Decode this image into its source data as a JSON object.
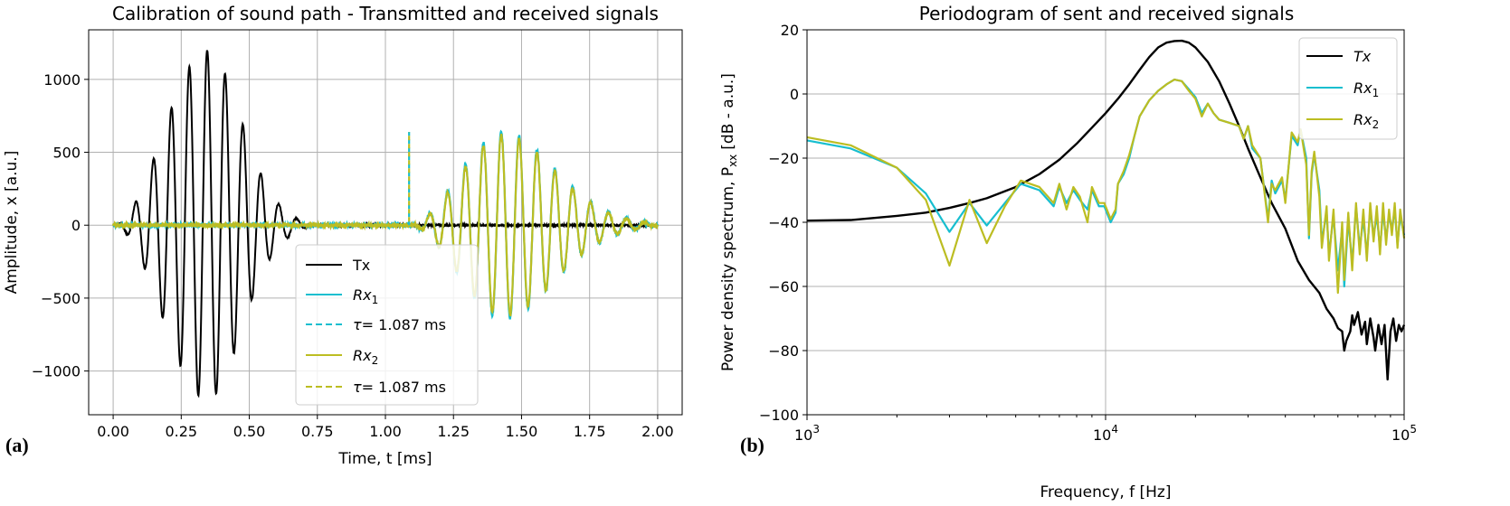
{
  "chart_data": [
    {
      "type": "line",
      "panel_label": "(a)",
      "title": "Calibration of sound path - Transmitted and received signals",
      "xlabel": "Time, t [ms]",
      "ylabel": "Amplitude, x [a.u.]",
      "xlim": [
        -0.09,
        2.09
      ],
      "ylim": [
        -1300,
        1340
      ],
      "x_ticks": [
        0.0,
        0.25,
        0.5,
        0.75,
        1.0,
        1.25,
        1.5,
        1.75,
        2.0
      ],
      "x_tick_labels": [
        "0.00",
        "0.25",
        "0.50",
        "0.75",
        "1.00",
        "1.25",
        "1.50",
        "1.75",
        "2.00"
      ],
      "y_ticks": [
        -1000,
        -500,
        0,
        500,
        1000
      ],
      "y_tick_labels": [
        "−1000",
        "−500",
        "0",
        "500",
        "1000"
      ],
      "grid": true,
      "legend_position": "lower-right",
      "series": [
        {
          "name": "Tx",
          "color": "#000000",
          "style": "solid",
          "burst": {
            "start": 0.0,
            "center": 0.35,
            "end": 0.72,
            "frequency_khz": 15.2,
            "peak_amplitude": 1200
          }
        },
        {
          "name": "Rx",
          "subscript": "1",
          "color": "#17becf",
          "style": "solid",
          "burst": {
            "start": 1.08,
            "center": 1.44,
            "end": 2.0,
            "frequency_khz": 15.2,
            "peak_amplitude": 640
          }
        },
        {
          "name": "τ",
          "value_text": "= 1.087 ms",
          "color": "#17becf",
          "style": "dashed",
          "vline_x": 1.087,
          "vline_top": 640
        },
        {
          "name": "Rx",
          "subscript": "2",
          "color": "#bcbd22",
          "style": "solid",
          "burst": {
            "start": 1.08,
            "center": 1.44,
            "end": 2.0,
            "frequency_khz": 15.2,
            "peak_amplitude": 620
          }
        },
        {
          "name": "τ",
          "value_text": "= 1.087 ms",
          "color": "#bcbd22",
          "style": "dashed",
          "vline_x": 1.087,
          "vline_top": 640
        }
      ]
    },
    {
      "type": "line",
      "panel_label": "(b)",
      "title": "Periodogram of sent and received signals",
      "xlabel": "Frequency, f [Hz]",
      "ylabel": "Power density spectrum, P",
      "ylabel_subscript": "xx",
      "ylabel_suffix": "[dB - a.u.]",
      "xscale": "log",
      "xlim": [
        1000,
        100000
      ],
      "ylim": [
        -100,
        20
      ],
      "x_ticks": [
        1000,
        10000,
        100000
      ],
      "x_tick_labels": [
        {
          "base": "10",
          "exp": "3"
        },
        {
          "base": "10",
          "exp": "4"
        },
        {
          "base": "10",
          "exp": "5"
        }
      ],
      "y_ticks": [
        -100,
        -80,
        -60,
        -40,
        -20,
        0,
        20
      ],
      "y_tick_labels": [
        "−100",
        "−80",
        "−60",
        "−40",
        "−20",
        "0",
        "20"
      ],
      "grid": true,
      "legend_position": "top-right",
      "series": [
        {
          "name": "Tx",
          "color": "#000000",
          "style": "solid",
          "points": [
            [
              1000,
              -39.5
            ],
            [
              1400,
              -39.3
            ],
            [
              2000,
              -38
            ],
            [
              2500,
              -37
            ],
            [
              3000,
              -35.5
            ],
            [
              3500,
              -34
            ],
            [
              4000,
              -32.5
            ],
            [
              5000,
              -29
            ],
            [
              6000,
              -25
            ],
            [
              7000,
              -20.5
            ],
            [
              8000,
              -15.5
            ],
            [
              9000,
              -10.5
            ],
            [
              10000,
              -6
            ],
            [
              11000,
              -1.5
            ],
            [
              12000,
              3
            ],
            [
              13000,
              7.5
            ],
            [
              14000,
              11.5
            ],
            [
              15000,
              14.5
            ],
            [
              16000,
              16
            ],
            [
              17000,
              16.5
            ],
            [
              18000,
              16.6
            ],
            [
              19000,
              16
            ],
            [
              20000,
              14.5
            ],
            [
              22000,
              10
            ],
            [
              24000,
              4
            ],
            [
              26000,
              -3
            ],
            [
              28000,
              -10
            ],
            [
              30000,
              -17
            ],
            [
              33000,
              -26
            ],
            [
              36000,
              -34
            ],
            [
              40000,
              -42
            ],
            [
              44000,
              -52
            ],
            [
              48000,
              -58
            ],
            [
              52000,
              -62
            ],
            [
              55000,
              -67
            ],
            [
              58000,
              -70
            ],
            [
              60000,
              -73
            ],
            [
              62000,
              -74
            ],
            [
              63000,
              -80
            ],
            [
              64000,
              -77
            ],
            [
              66000,
              -74
            ],
            [
              67000,
              -69
            ],
            [
              68000,
              -72
            ],
            [
              70000,
              -68
            ],
            [
              72000,
              -75
            ],
            [
              74000,
              -71
            ],
            [
              75000,
              -78
            ],
            [
              77000,
              -70
            ],
            [
              79000,
              -76
            ],
            [
              80000,
              -80
            ],
            [
              82000,
              -72
            ],
            [
              84000,
              -78
            ],
            [
              86000,
              -72
            ],
            [
              88000,
              -89
            ],
            [
              90000,
              -74
            ],
            [
              92000,
              -70
            ],
            [
              94000,
              -77
            ],
            [
              96000,
              -72
            ],
            [
              98000,
              -74
            ],
            [
              100000,
              -72
            ]
          ]
        },
        {
          "name": "Rx",
          "subscript": "1",
          "color": "#17becf",
          "style": "solid",
          "points": [
            [
              1000,
              -14.5
            ],
            [
              1400,
              -17
            ],
            [
              2000,
              -23
            ],
            [
              2500,
              -31
            ],
            [
              3000,
              -43
            ],
            [
              3500,
              -34
            ],
            [
              4000,
              -41
            ],
            [
              4600,
              -34
            ],
            [
              5200,
              -28
            ],
            [
              6000,
              -30
            ],
            [
              6700,
              -35
            ],
            [
              7000,
              -29
            ],
            [
              7400,
              -34
            ],
            [
              7800,
              -30
            ],
            [
              8200,
              -33
            ],
            [
              8700,
              -36
            ],
            [
              9000,
              -30
            ],
            [
              9500,
              -35
            ],
            [
              9900,
              -35
            ],
            [
              10400,
              -40
            ],
            [
              10800,
              -37
            ],
            [
              11000,
              -28
            ],
            [
              11500,
              -25
            ],
            [
              12000,
              -20
            ],
            [
              12500,
              -13
            ],
            [
              13000,
              -7
            ],
            [
              14000,
              -2
            ],
            [
              15000,
              1
            ],
            [
              16000,
              3
            ],
            [
              17000,
              4.5
            ],
            [
              18000,
              4
            ],
            [
              19000,
              1.5
            ],
            [
              20000,
              -1
            ],
            [
              21000,
              -6
            ],
            [
              22000,
              -3
            ],
            [
              23000,
              -6
            ],
            [
              24000,
              -8
            ],
            [
              26000,
              -9
            ],
            [
              28000,
              -10
            ],
            [
              29000,
              -14
            ],
            [
              30000,
              -10
            ],
            [
              31000,
              -17
            ],
            [
              33000,
              -20
            ],
            [
              35000,
              -39
            ],
            [
              36000,
              -27
            ],
            [
              37000,
              -31
            ],
            [
              39000,
              -27
            ],
            [
              40000,
              -33
            ],
            [
              42000,
              -13
            ],
            [
              44000,
              -16
            ],
            [
              45000,
              -11
            ],
            [
              47000,
              -20
            ],
            [
              48000,
              -45
            ],
            [
              49000,
              -25
            ],
            [
              50000,
              -19
            ],
            [
              52000,
              -30
            ],
            [
              53000,
              -46
            ],
            [
              55000,
              -37
            ],
            [
              56000,
              -50
            ],
            [
              58000,
              -38
            ],
            [
              60000,
              -55
            ],
            [
              62000,
              -42
            ],
            [
              63000,
              -60
            ],
            [
              65000,
              -39
            ],
            [
              67000,
              -53
            ],
            [
              69000,
              -35
            ],
            [
              71000,
              -48
            ],
            [
              73000,
              -39
            ],
            [
              75000,
              -50
            ],
            [
              77000,
              -36
            ],
            [
              79000,
              -44
            ],
            [
              81000,
              -38
            ],
            [
              83000,
              -48
            ],
            [
              85000,
              -37
            ],
            [
              87000,
              -45
            ],
            [
              89000,
              -38
            ],
            [
              91000,
              -42
            ],
            [
              93000,
              -36
            ],
            [
              95000,
              -47
            ],
            [
              97000,
              -38
            ],
            [
              100000,
              -44
            ]
          ]
        },
        {
          "name": "Rx",
          "subscript": "2",
          "color": "#bcbd22",
          "style": "solid",
          "points": [
            [
              1000,
              -13.5
            ],
            [
              1400,
              -16
            ],
            [
              2000,
              -23
            ],
            [
              2500,
              -33
            ],
            [
              3000,
              -53.5
            ],
            [
              3500,
              -33
            ],
            [
              4000,
              -46.5
            ],
            [
              4600,
              -35
            ],
            [
              5200,
              -27
            ],
            [
              6000,
              -29
            ],
            [
              6700,
              -34
            ],
            [
              7000,
              -28
            ],
            [
              7400,
              -36
            ],
            [
              7800,
              -29
            ],
            [
              8200,
              -32
            ],
            [
              8700,
              -40
            ],
            [
              9000,
              -29
            ],
            [
              9500,
              -34
            ],
            [
              9900,
              -34
            ],
            [
              10400,
              -39
            ],
            [
              10800,
              -36
            ],
            [
              11000,
              -28
            ],
            [
              11500,
              -24
            ],
            [
              12000,
              -19
            ],
            [
              12500,
              -13
            ],
            [
              13000,
              -7
            ],
            [
              14000,
              -2
            ],
            [
              15000,
              1
            ],
            [
              16000,
              3
            ],
            [
              17000,
              4.5
            ],
            [
              18000,
              4
            ],
            [
              19000,
              1
            ],
            [
              20000,
              -1.5
            ],
            [
              21000,
              -7
            ],
            [
              22000,
              -3
            ],
            [
              23000,
              -6
            ],
            [
              24000,
              -8
            ],
            [
              26000,
              -9
            ],
            [
              28000,
              -10
            ],
            [
              29000,
              -14
            ],
            [
              30000,
              -10
            ],
            [
              31000,
              -16
            ],
            [
              33000,
              -20
            ],
            [
              35000,
              -40
            ],
            [
              36000,
              -28
            ],
            [
              37000,
              -30
            ],
            [
              39000,
              -26
            ],
            [
              40000,
              -34
            ],
            [
              42000,
              -12
            ],
            [
              44000,
              -15
            ],
            [
              45000,
              -11
            ],
            [
              47000,
              -22
            ],
            [
              48000,
              -44
            ],
            [
              49000,
              -24
            ],
            [
              50000,
              -18
            ],
            [
              52000,
              -32
            ],
            [
              53000,
              -48
            ],
            [
              55000,
              -35
            ],
            [
              56000,
              -52
            ],
            [
              58000,
              -36
            ],
            [
              60000,
              -62
            ],
            [
              62000,
              -40
            ],
            [
              63000,
              -58
            ],
            [
              65000,
              -37
            ],
            [
              67000,
              -55
            ],
            [
              69000,
              -34
            ],
            [
              71000,
              -50
            ],
            [
              73000,
              -36
            ],
            [
              75000,
              -52
            ],
            [
              77000,
              -34
            ],
            [
              79000,
              -46
            ],
            [
              81000,
              -35
            ],
            [
              83000,
              -50
            ],
            [
              85000,
              -34
            ],
            [
              87000,
              -47
            ],
            [
              89000,
              -36
            ],
            [
              91000,
              -44
            ],
            [
              93000,
              -34
            ],
            [
              95000,
              -48
            ],
            [
              97000,
              -36
            ],
            [
              100000,
              -45
            ]
          ]
        }
      ]
    }
  ]
}
